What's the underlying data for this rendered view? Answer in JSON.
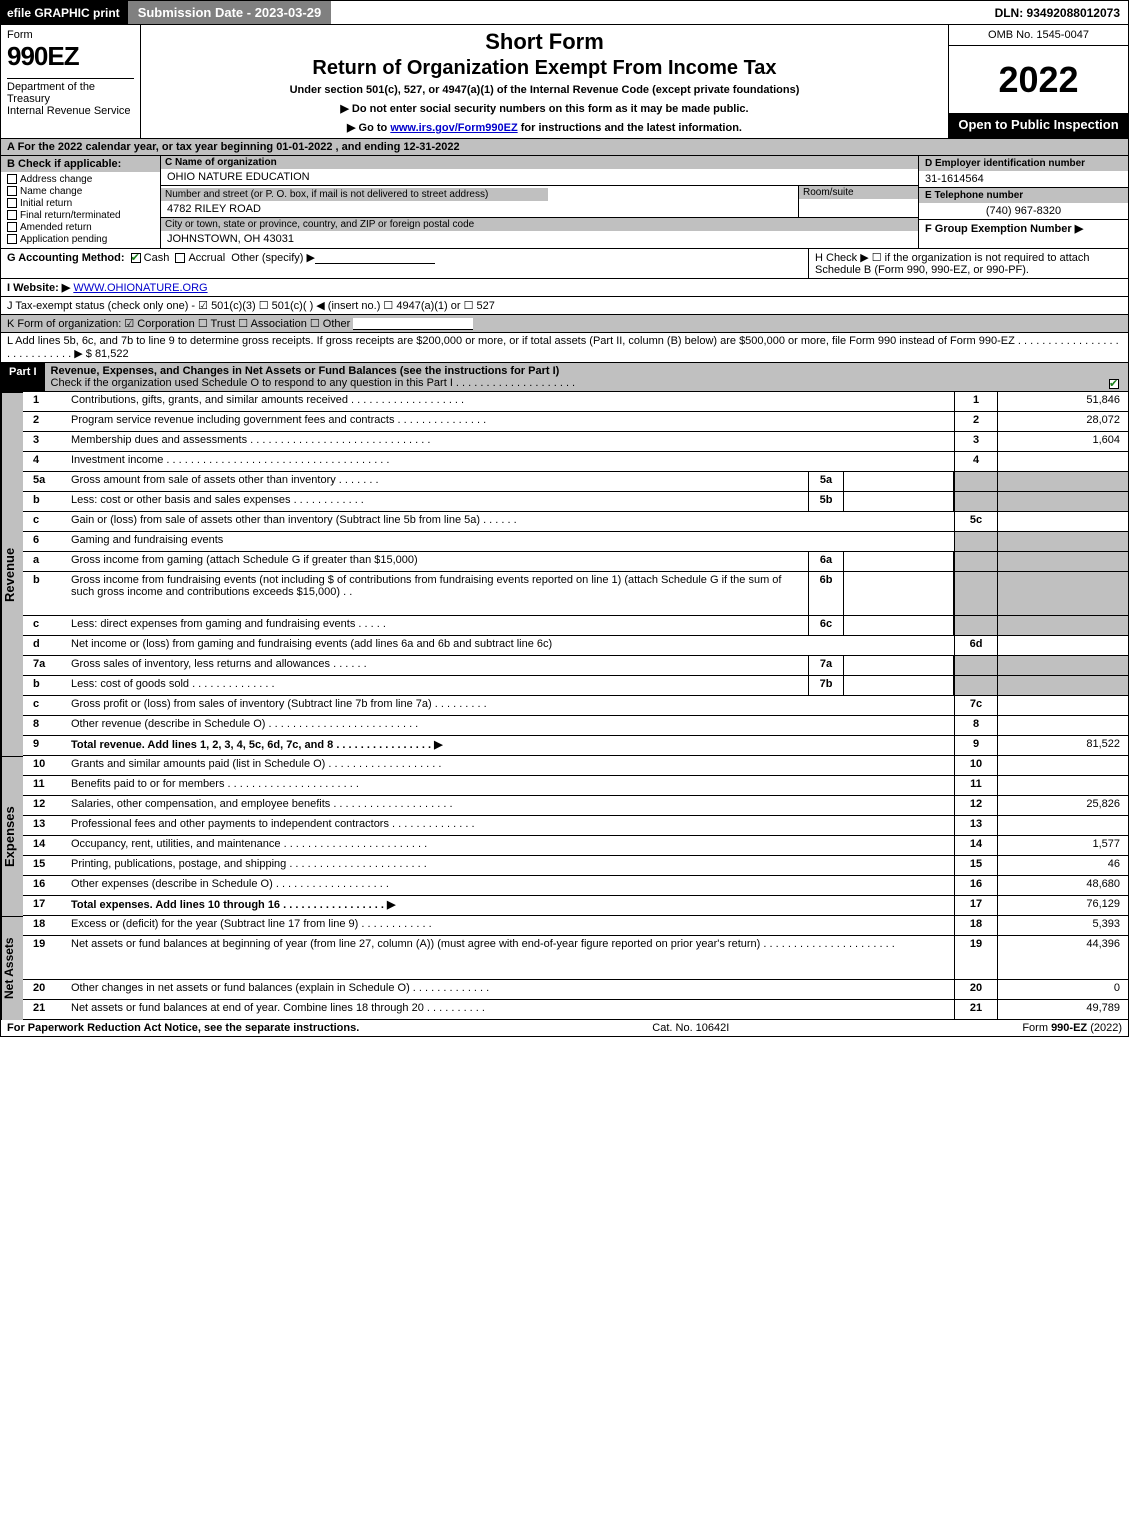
{
  "topbar": {
    "efile": "efile GRAPHIC print",
    "submission": "Submission Date - 2023-03-29",
    "dln": "DLN: 93492088012073"
  },
  "header": {
    "form_word": "Form",
    "form_number": "990EZ",
    "department1": "Department of the Treasury",
    "department2": "Internal Revenue Service",
    "short_form": "Short Form",
    "title": "Return of Organization Exempt From Income Tax",
    "under_section": "Under section 501(c), 527, or 4947(a)(1) of the Internal Revenue Code (except private foundations)",
    "warn": "▶ Do not enter social security numbers on this form as it may be made public.",
    "goto_pre": "▶ Go to ",
    "goto_link": "www.irs.gov/Form990EZ",
    "goto_post": " for instructions and the latest information.",
    "omb": "OMB No. 1545-0047",
    "year": "2022",
    "open": "Open to Public Inspection"
  },
  "line_a": "A  For the 2022 calendar year, or tax year beginning 01-01-2022 , and ending 12-31-2022",
  "section_b": {
    "header": "B  Check if applicable:",
    "opts": [
      "Address change",
      "Name change",
      "Initial return",
      "Final return/terminated",
      "Amended return",
      "Application pending"
    ]
  },
  "section_c": {
    "name_label": "C Name of organization",
    "name": "OHIO NATURE EDUCATION",
    "street_label": "Number and street (or P. O. box, if mail is not delivered to street address)",
    "room_label": "Room/suite",
    "street": "4782 RILEY ROAD",
    "city_label": "City or town, state or province, country, and ZIP or foreign postal code",
    "city": "JOHNSTOWN, OH  43031"
  },
  "section_d": {
    "d_label": "D Employer identification number",
    "ein": "31-1614564",
    "e_label": "E Telephone number",
    "phone": "(740) 967-8320",
    "f_label": "F Group Exemption Number  ▶"
  },
  "row_g": {
    "label": "G Accounting Method:",
    "cash": "Cash",
    "accrual": "Accrual",
    "other": "Other (specify) ▶"
  },
  "row_h": "H  Check ▶  ☐  if the organization is not required to attach Schedule B (Form 990, 990-EZ, or 990-PF).",
  "row_i_label": "I Website: ▶",
  "row_i_value": "WWW.OHIONATURE.ORG",
  "row_j": "J Tax-exempt status (check only one) - ☑ 501(c)(3) ☐ 501(c)(  ) ◀ (insert no.) ☐ 4947(a)(1) or ☐ 527",
  "row_k": "K Form of organization:  ☑ Corporation  ☐ Trust  ☐ Association  ☐ Other",
  "row_l_text": "L Add lines 5b, 6c, and 7b to line 9 to determine gross receipts. If gross receipts are $200,000 or more, or if total assets (Part II, column (B) below) are $500,000 or more, file Form 990 instead of Form 990-EZ .  .  .  .  .  .  .  .  .  .  .  .  .  .  .  .  .  .  .  .  .  .  .  .  .  .  .  . ▶ $",
  "row_l_amount": "81,522",
  "part1": {
    "label": "Part I",
    "title": "Revenue, Expenses, and Changes in Net Assets or Fund Balances (see the instructions for Part I)",
    "sub": "Check if the organization used Schedule O to respond to any question in this Part I .  .  .  .  .  .  .  .  .  .  .  .  .  .  .  .  .  .  .  ."
  },
  "sides": {
    "revenue": "Revenue",
    "expenses": "Expenses",
    "netassets": "Net Assets"
  },
  "lines": [
    {
      "n": "1",
      "d": "Contributions, gifts, grants, and similar amounts received  .  .  .  .  .  .  .  .  .  .  .  .  .  .  .  .  .  .  .",
      "r": "1",
      "v": "51,846"
    },
    {
      "n": "2",
      "d": "Program service revenue including government fees and contracts .  .  .  .  .  .  .  .  .  .  .  .  .  .  .",
      "r": "2",
      "v": "28,072"
    },
    {
      "n": "3",
      "d": "Membership dues and assessments .  .  .  .  .  .  .  .  .  .  .  .  .  .  .  .  .  .  .  .  .  .  .  .  .  .  .  .  .  .",
      "r": "3",
      "v": "1,604"
    },
    {
      "n": "4",
      "d": "Investment income .  .  .  .  .  .  .  .  .  .  .  .  .  .  .  .  .  .  .  .  .  .  .  .  .  .  .  .  .  .  .  .  .  .  .  .  .",
      "r": "4",
      "v": ""
    },
    {
      "n": "5a",
      "d": "Gross amount from sale of assets other than inventory .  .  .  .  .  .  .",
      "mini": "5a",
      "mv": "",
      "r": "",
      "v": "",
      "shade_right": true
    },
    {
      "n": "b",
      "d": "Less: cost or other basis and sales expenses .  .  .  .  .  .  .  .  .  .  .  .",
      "mini": "5b",
      "mv": "",
      "r": "",
      "v": "",
      "shade_right": true
    },
    {
      "n": "c",
      "d": "Gain or (loss) from sale of assets other than inventory (Subtract line 5b from line 5a)  .  .  .  .  .  .",
      "r": "5c",
      "v": ""
    },
    {
      "n": "6",
      "d": "Gaming and fundraising events",
      "r": "",
      "v": "",
      "shade_right": true
    },
    {
      "n": "a",
      "d": "Gross income from gaming (attach Schedule G if greater than $15,000)",
      "mini": "6a",
      "mv": "",
      "r": "",
      "v": "",
      "shade_right": true
    },
    {
      "n": "b",
      "d": "Gross income from fundraising events (not including $                           of contributions from fundraising events reported on line 1) (attach Schedule G if the sum of such gross income and contributions exceeds $15,000)   .   .",
      "mini": "6b",
      "mv": "",
      "r": "",
      "v": "",
      "shade_right": true,
      "tall": true
    },
    {
      "n": "c",
      "d": "Less: direct expenses from gaming and fundraising events  .  .  .  .  .",
      "mini": "6c",
      "mv": "",
      "r": "",
      "v": "",
      "shade_right": true
    },
    {
      "n": "d",
      "d": "Net income or (loss) from gaming and fundraising events (add lines 6a and 6b and subtract line 6c)",
      "r": "6d",
      "v": ""
    },
    {
      "n": "7a",
      "d": "Gross sales of inventory, less returns and allowances .  .  .  .  .  .",
      "mini": "7a",
      "mv": "",
      "r": "",
      "v": "",
      "shade_right": true
    },
    {
      "n": "b",
      "d": "Less: cost of goods sold         .   .   .   .   .   .   .   .   .   .   .   .   .   .",
      "mini": "7b",
      "mv": "",
      "r": "",
      "v": "",
      "shade_right": true
    },
    {
      "n": "c",
      "d": "Gross profit or (loss) from sales of inventory (Subtract line 7b from line 7a)  .  .  .  .  .  .  .  .  .",
      "r": "7c",
      "v": ""
    },
    {
      "n": "8",
      "d": "Other revenue (describe in Schedule O) .  .  .  .  .  .  .  .  .  .  .  .  .  .  .  .  .  .  .  .  .  .  .  .  .",
      "r": "8",
      "v": ""
    },
    {
      "n": "9",
      "d": "Total revenue. Add lines 1, 2, 3, 4, 5c, 6d, 7c, and 8  .  .  .  .  .  .  .  .  .  .  .  .  .  .  .  .                     ▶",
      "r": "9",
      "v": "81,522",
      "bold": true
    }
  ],
  "exp_lines": [
    {
      "n": "10",
      "d": "Grants and similar amounts paid (list in Schedule O) .  .  .  .  .  .  .  .  .  .  .  .  .  .  .  .  .  .  .",
      "r": "10",
      "v": ""
    },
    {
      "n": "11",
      "d": "Benefits paid to or for members       .   .   .   .   .   .   .   .   .   .   .   .   .   .   .   .   .   .   .   .   .   .",
      "r": "11",
      "v": ""
    },
    {
      "n": "12",
      "d": "Salaries, other compensation, and employee benefits .  .  .  .  .  .  .  .  .  .  .  .  .  .  .  .  .  .  .  .",
      "r": "12",
      "v": "25,826"
    },
    {
      "n": "13",
      "d": "Professional fees and other payments to independent contractors .  .  .  .  .  .  .  .  .  .  .  .  .  .",
      "r": "13",
      "v": ""
    },
    {
      "n": "14",
      "d": "Occupancy, rent, utilities, and maintenance .  .  .  .  .  .  .  .  .  .  .  .  .  .  .  .  .  .  .  .  .  .  .  .",
      "r": "14",
      "v": "1,577"
    },
    {
      "n": "15",
      "d": "Printing, publications, postage, and shipping .  .  .  .  .  .  .  .  .  .  .  .  .  .  .  .  .  .  .  .  .  .  .",
      "r": "15",
      "v": "46"
    },
    {
      "n": "16",
      "d": "Other expenses (describe in Schedule O)       .   .   .   .   .   .   .   .   .   .   .   .   .   .   .   .   .   .   .",
      "r": "16",
      "v": "48,680"
    },
    {
      "n": "17",
      "d": "Total expenses. Add lines 10 through 16       .   .   .   .   .   .   .   .   .   .   .   .   .   .   .   .   .                   ▶",
      "r": "17",
      "v": "76,129",
      "bold": true
    }
  ],
  "net_lines": [
    {
      "n": "18",
      "d": "Excess or (deficit) for the year (Subtract line 17 from line 9)        .   .   .   .   .   .   .   .   .   .   .   .",
      "r": "18",
      "v": "5,393"
    },
    {
      "n": "19",
      "d": "Net assets or fund balances at beginning of year (from line 27, column (A)) (must agree with end-of-year figure reported on prior year's return) .  .  .  .  .  .  .  .  .  .  .  .  .  .  .  .  .  .  .  .  .  .",
      "r": "19",
      "v": "44,396",
      "tall": true,
      "shade_top_right": true
    },
    {
      "n": "20",
      "d": "Other changes in net assets or fund balances (explain in Schedule O) .  .  .  .  .  .  .  .  .  .  .  .  .",
      "r": "20",
      "v": "0"
    },
    {
      "n": "21",
      "d": "Net assets or fund balances at end of year. Combine lines 18 through 20 .  .  .  .  .  .  .  .  .  .",
      "r": "21",
      "v": "49,789"
    }
  ],
  "footer": {
    "left": "For Paperwork Reduction Act Notice, see the separate instructions.",
    "mid": "Cat. No. 10642I",
    "right_pre": "Form ",
    "right_bold": "990-EZ",
    "right_post": " (2022)"
  },
  "colors": {
    "gray": "#c0c0c0",
    "black": "#000000",
    "white": "#ffffff",
    "link": "#0000cc",
    "check": "#1a7f1a",
    "darkgray": "#808080"
  }
}
